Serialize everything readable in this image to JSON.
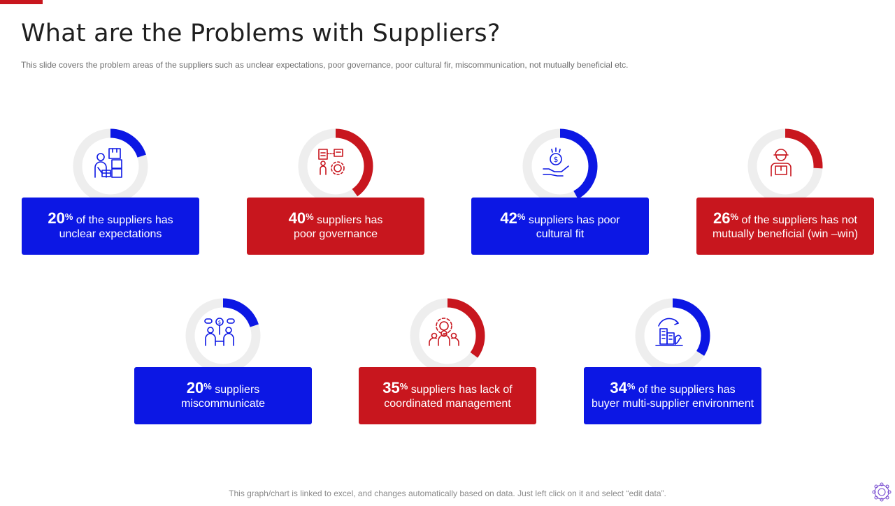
{
  "slide": {
    "title": "What are the Problems with Suppliers?",
    "subtitle": "This slide covers the problem areas of the suppliers such as unclear expectations, poor governance, poor cultural fir, miscommunication,  not mutually beneficial etc.",
    "footer_note": "This graph/chart is linked to excel, and changes automatically based on data. Just left click on it and select “edit data”."
  },
  "colors": {
    "blue": "#0c17e4",
    "red": "#c8161e",
    "track": "#eeeeee"
  },
  "cards": [
    {
      "value": 20,
      "pct_label": "20",
      "pct_sign": "%",
      "line1": "of the suppliers has",
      "line2": "unclear expectations",
      "color": "blue",
      "icon": "supplier-boxes-icon"
    },
    {
      "value": 40,
      "pct_label": "40",
      "pct_sign": "%",
      "line1": "suppliers has",
      "line2": "poor governance",
      "color": "red",
      "icon": "governance-gear-icon"
    },
    {
      "value": 42,
      "pct_label": "42",
      "pct_sign": "%",
      "line1": "suppliers has poor",
      "line2": "cultural fit",
      "color": "blue",
      "icon": "money-hand-icon"
    },
    {
      "value": 26,
      "pct_label": "26",
      "pct_sign": "%",
      "line1": "of the suppliers has not",
      "line2": "mutually  beneficial (win –win)",
      "color": "red",
      "icon": "delivery-person-icon"
    },
    {
      "value": 20,
      "pct_label": "20",
      "pct_sign": "%",
      "line1": "suppliers",
      "line2": "miscommunicate",
      "color": "blue",
      "icon": "people-talking-icon"
    },
    {
      "value": 35,
      "pct_label": "35",
      "pct_sign": "%",
      "line1": "suppliers has lack of",
      "line2": "coordinated management",
      "color": "red",
      "icon": "team-gear-icon"
    },
    {
      "value": 34,
      "pct_label": "34",
      "pct_sign": "%",
      "line1": "of the suppliers has",
      "line2": "buyer multi-supplier environment",
      "color": "blue",
      "icon": "buildings-cycle-icon"
    }
  ]
}
